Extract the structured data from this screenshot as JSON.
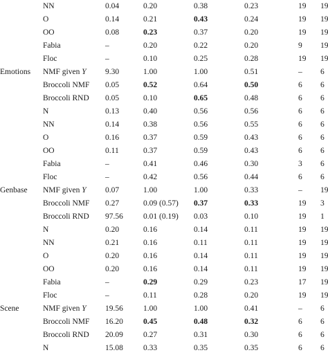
{
  "rows": [
    {
      "ds": "",
      "m": "NN",
      "v": [
        "0.04",
        "0.20",
        "0.38",
        "0.23",
        "19",
        "19"
      ],
      "bold": []
    },
    {
      "ds": "",
      "m": "O",
      "v": [
        "0.14",
        "0.21",
        "0.43",
        "0.24",
        "19",
        "19"
      ],
      "bold": [
        2
      ]
    },
    {
      "ds": "",
      "m": "OO",
      "v": [
        "0.08",
        "0.23",
        "0.37",
        "0.20",
        "19",
        "19"
      ],
      "bold": [
        1
      ]
    },
    {
      "ds": "",
      "m": "Fabia",
      "v": [
        "–",
        "0.20",
        "0.22",
        "0.20",
        "9",
        "19"
      ],
      "bold": []
    },
    {
      "ds": "",
      "m": "Floc",
      "v": [
        "–",
        "0.10",
        "0.25",
        "0.28",
        "19",
        "19"
      ],
      "bold": []
    },
    {
      "ds": "Emotions",
      "m": "NMF given ",
      "mi": "Y",
      "v": [
        "9.30",
        "1.00",
        "1.00",
        "0.51",
        "–",
        "6"
      ],
      "bold": []
    },
    {
      "ds": "",
      "m": "Broccoli NMF",
      "v": [
        "0.05",
        "0.52",
        "0.64",
        "0.50",
        "6",
        "6"
      ],
      "bold": [
        1,
        3
      ]
    },
    {
      "ds": "",
      "m": "Broccoli RND",
      "v": [
        "0.05",
        "0.10",
        "0.65",
        "0.48",
        "6",
        "6"
      ],
      "bold": [
        2
      ]
    },
    {
      "ds": "",
      "m": "N",
      "v": [
        "0.13",
        "0.40",
        "0.56",
        "0.56",
        "6",
        "6"
      ],
      "bold": []
    },
    {
      "ds": "",
      "m": "NN",
      "v": [
        "0.14",
        "0.38",
        "0.56",
        "0.55",
        "6",
        "6"
      ],
      "bold": []
    },
    {
      "ds": "",
      "m": "O",
      "v": [
        "0.16",
        "0.37",
        "0.59",
        "0.43",
        "6",
        "6"
      ],
      "bold": []
    },
    {
      "ds": "",
      "m": "OO",
      "v": [
        "0.11",
        "0.37",
        "0.59",
        "0.43",
        "6",
        "6"
      ],
      "bold": []
    },
    {
      "ds": "",
      "m": "Fabia",
      "v": [
        "–",
        "0.41",
        "0.46",
        "0.30",
        "3",
        "6"
      ],
      "bold": []
    },
    {
      "ds": "",
      "m": "Floc",
      "v": [
        "–",
        "0.42",
        "0.56",
        "0.44",
        "6",
        "6"
      ],
      "bold": []
    },
    {
      "ds": "Genbase",
      "m": "NMF given ",
      "mi": "Y",
      "v": [
        "0.07",
        "1.00",
        "1.00",
        "0.33",
        "–",
        "19"
      ],
      "bold": []
    },
    {
      "ds": "",
      "m": "Broccoli NMF",
      "v": [
        "0.27",
        "0.09 (0.57)",
        "0.37",
        "0.33",
        "19",
        "3"
      ],
      "bold": [
        2,
        3
      ]
    },
    {
      "ds": "",
      "m": "Broccoli RND",
      "v": [
        "97.56",
        "0.01 (0.19)",
        "0.03",
        "0.10",
        "19",
        "1"
      ],
      "bold": []
    },
    {
      "ds": "",
      "m": "N",
      "v": [
        "0.20",
        "0.16",
        "0.14",
        "0.11",
        "19",
        "19"
      ],
      "bold": []
    },
    {
      "ds": "",
      "m": "NN",
      "v": [
        "0.21",
        "0.16",
        "0.11",
        "0.11",
        "19",
        "19"
      ],
      "bold": []
    },
    {
      "ds": "",
      "m": "O",
      "v": [
        "0.20",
        "0.16",
        "0.14",
        "0.11",
        "19",
        "19"
      ],
      "bold": []
    },
    {
      "ds": "",
      "m": "OO",
      "v": [
        "0.20",
        "0.16",
        "0.14",
        "0.11",
        "19",
        "19"
      ],
      "bold": []
    },
    {
      "ds": "",
      "m": "Fabia",
      "v": [
        "–",
        "0.29",
        "0.29",
        "0.23",
        "17",
        "19"
      ],
      "bold": [
        1
      ]
    },
    {
      "ds": "",
      "m": "Floc",
      "v": [
        "–",
        "0.11",
        "0.28",
        "0.20",
        "19",
        "19"
      ],
      "bold": []
    },
    {
      "ds": "Scene",
      "m": "NMF given ",
      "mi": "Y",
      "v": [
        "19.56",
        "1.00",
        "1.00",
        "0.41",
        "–",
        "6"
      ],
      "bold": []
    },
    {
      "ds": "",
      "m": "Broccoli NMF",
      "v": [
        "16.20",
        "0.45",
        "0.48",
        "0.32",
        "6",
        "6"
      ],
      "bold": [
        1,
        2,
        3
      ]
    },
    {
      "ds": "",
      "m": "Broccoli RND",
      "v": [
        "20.09",
        "0.27",
        "0.31",
        "0.30",
        "6",
        "6"
      ],
      "bold": []
    },
    {
      "ds": "",
      "m": "N",
      "v": [
        "15.08",
        "0.33",
        "0.35",
        "0.35",
        "6",
        "6"
      ],
      "bold": []
    }
  ]
}
